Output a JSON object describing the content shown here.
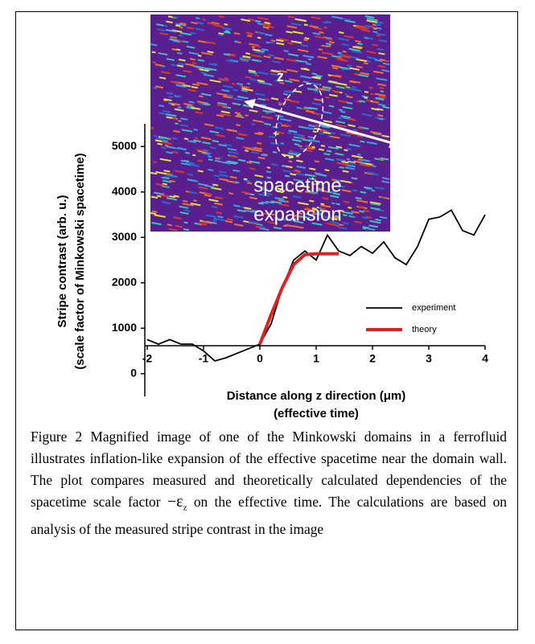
{
  "chart_data": {
    "type": "line",
    "ylabel": [
      "Stripe contrast (arb. u.)",
      "(scale factor of Minkowski spacetime)"
    ],
    "xlabel": [
      "Distance along z direction (μm)",
      "(effective time)"
    ],
    "xlim": [
      -2,
      4
    ],
    "xticks": [
      -2,
      -1,
      0,
      1,
      2,
      3,
      4
    ],
    "ylim": [
      -500,
      5500
    ],
    "yticks": [
      0,
      1000,
      2000,
      3000,
      4000,
      5000
    ],
    "legend": "lower right",
    "series": [
      {
        "name": "experiment",
        "color": "#000000",
        "x": [
          -2,
          -1.8,
          -1.6,
          -1.4,
          -1.2,
          -1.0,
          -0.8,
          -0.6,
          -0.4,
          -0.2,
          0,
          0.2,
          0.4,
          0.6,
          0.8,
          1.0,
          1.2,
          1.4,
          1.6,
          1.8,
          2.0,
          2.2,
          2.4,
          2.6,
          2.8,
          3.0,
          3.2,
          3.4,
          3.6,
          3.8,
          4.0
        ],
        "values": [
          750,
          650,
          750,
          650,
          650,
          500,
          280,
          350,
          450,
          550,
          650,
          1100,
          1900,
          2500,
          2700,
          2500,
          3050,
          2700,
          2600,
          2800,
          2650,
          2900,
          2550,
          2400,
          2800,
          3400,
          3450,
          3600,
          3150,
          3050,
          3500
        ]
      },
      {
        "name": "theory",
        "color": "#dd2020",
        "x": [
          0,
          0.2,
          0.4,
          0.6,
          0.8,
          1.0,
          1.2,
          1.4
        ],
        "values": [
          650,
          1300,
          1900,
          2400,
          2620,
          2640,
          2640,
          2640
        ]
      }
    ],
    "inset_labels": [
      "z",
      "spacetime",
      "expansion"
    ]
  },
  "caption": {
    "before": "Figure 2 Magnified image of one of the Minkowski domains in a ferrofluid illustrates inflation-like expansion of the effective spacetime near the domain wall. The plot compares  measured and theoretically calculated dependencies of the spacetime scale factor ",
    "symbol": "−ε",
    "subscript": "z",
    "after": " on the effective time. The calculations are based on analysis of the measured stripe contrast in the image"
  }
}
